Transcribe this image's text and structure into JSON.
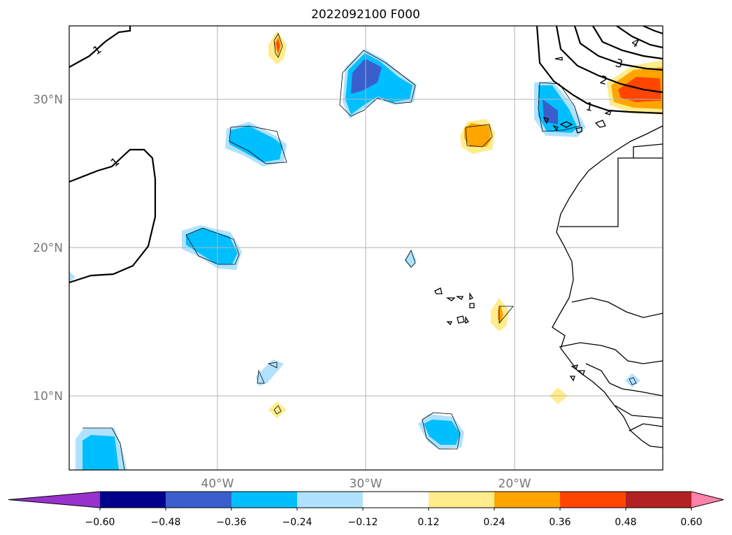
{
  "title": "2022092100 F000",
  "lat_labels": [
    "30°N",
    "20°N",
    "10°N"
  ],
  "lon_labels": [
    "40°W",
    "30°W",
    "20°W"
  ],
  "contour_labels": [
    "1",
    "1",
    "1",
    "2",
    "3",
    "4"
  ],
  "colorbar": {
    "ticks": [
      "−0.60",
      "−0.48",
      "−0.36",
      "−0.24",
      "−0.12",
      "0.12",
      "0.24",
      "0.36",
      "0.48",
      "0.60"
    ],
    "colors": [
      "#9932cc",
      "#00008b",
      "#3a5fcd",
      "#00bfff",
      "#b0e2ff",
      "#ffffff",
      "#ffec8b",
      "#ffa500",
      "#ff4500",
      "#b22222",
      "#ff82ab"
    ]
  },
  "map": {
    "lon_range": [
      "50°W",
      "10°W"
    ],
    "lat_range": [
      "5°N",
      "35°N"
    ],
    "gridlines": true,
    "features": [
      "coastlines",
      "country borders",
      "contour lines",
      "filled anomaly shading"
    ]
  }
}
